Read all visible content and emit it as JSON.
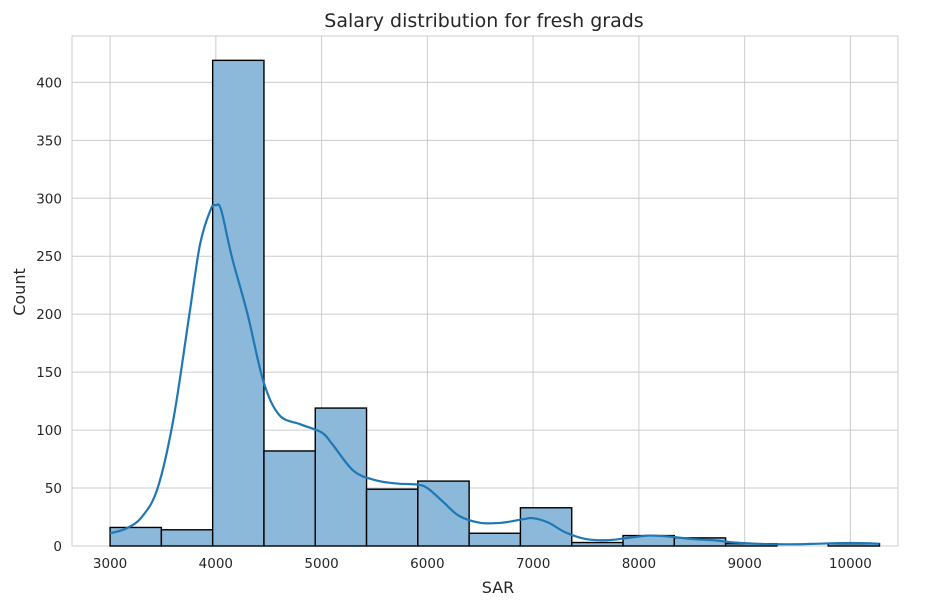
{
  "chart_data": {
    "type": "bar",
    "title": "Salary distribution for fresh grads",
    "xlabel": "SAR",
    "ylabel": "Count",
    "xlim": [
      2640,
      10450
    ],
    "ylim": [
      0,
      440
    ],
    "xticks": [
      3000,
      4000,
      5000,
      6000,
      7000,
      8000,
      9000,
      10000
    ],
    "yticks": [
      0,
      50,
      100,
      150,
      200,
      250,
      300,
      350,
      400
    ],
    "grid": true,
    "bin_edges": [
      3000,
      3485,
      3970,
      4455,
      4940,
      5425,
      5910,
      6395,
      6880,
      7365,
      7850,
      8335,
      8820,
      9305,
      9790,
      10275
    ],
    "values": [
      16,
      14,
      419,
      82,
      119,
      49,
      56,
      11,
      33,
      3,
      9,
      7,
      2,
      0,
      2
    ],
    "kde": {
      "x": [
        3000,
        3150,
        3300,
        3450,
        3600,
        3750,
        3850,
        3950,
        4000,
        4050,
        4150,
        4300,
        4450,
        4600,
        4800,
        5000,
        5100,
        5300,
        5500,
        5700,
        5900,
        6000,
        6150,
        6300,
        6500,
        6700,
        6900,
        7000,
        7150,
        7300,
        7500,
        7700,
        7900,
        8100,
        8300,
        8500,
        8700,
        8900,
        9100,
        9300,
        9500,
        9700,
        9900,
        10100,
        10275
      ],
      "y": [
        11,
        15,
        25,
        50,
        110,
        200,
        260,
        290,
        294,
        290,
        250,
        200,
        142,
        113,
        105,
        98,
        88,
        65,
        57,
        54,
        53,
        50,
        38,
        26,
        20,
        20,
        23,
        24,
        20,
        12,
        6,
        5,
        7,
        9,
        8,
        6,
        5,
        3,
        2,
        1.5,
        1.5,
        2,
        2.5,
        2.5,
        2
      ]
    },
    "colors": {
      "bar_fill": "#8cb8d9",
      "bar_edge": "#000000",
      "kde": "#1f77b4",
      "grid": "#cccccc"
    }
  }
}
